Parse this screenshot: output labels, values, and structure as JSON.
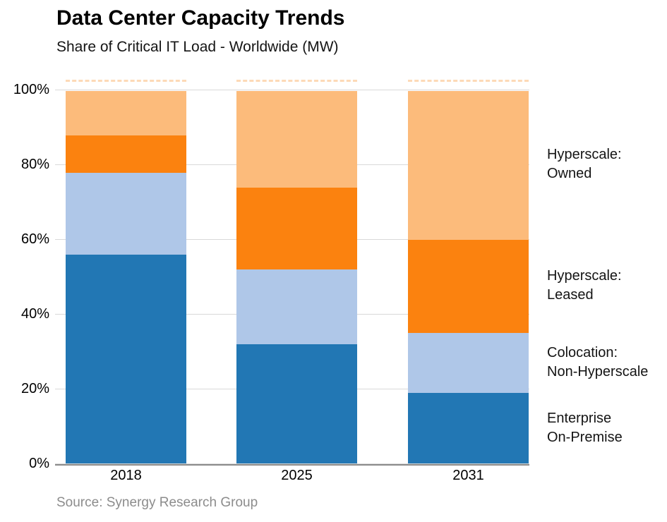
{
  "source": "Source: Synergy Research Group",
  "chart_data": {
    "type": "bar",
    "stacked": true,
    "percent": true,
    "title": "Data Center Capacity Trends",
    "subtitle": "Share of Critical IT Load - Worldwide (MW)",
    "categories": [
      "2018",
      "2025",
      "2031"
    ],
    "series": [
      {
        "name": "Enterprise On-Premise",
        "legend": [
          "Enterprise",
          "On-Premise"
        ],
        "color": "#2277B4",
        "values": [
          56,
          32,
          19
        ]
      },
      {
        "name": "Colocation: Non-Hyperscale",
        "legend": [
          "Colocation:",
          "Non-Hyperscale"
        ],
        "color": "#AFC7E8",
        "values": [
          22,
          20,
          16
        ]
      },
      {
        "name": "Hyperscale: Leased",
        "legend": [
          "Hyperscale:",
          "Leased"
        ],
        "color": "#FB820F",
        "values": [
          10,
          22,
          25
        ]
      },
      {
        "name": "Hyperscale: Owned",
        "legend": [
          "Hyperscale:",
          "Owned"
        ],
        "color": "#FCBB7B",
        "values": [
          12,
          26,
          40
        ]
      }
    ],
    "ylim": [
      0,
      100
    ],
    "y_ticks": [
      "0%",
      "20%",
      "40%",
      "60%",
      "80%",
      "100%"
    ],
    "grid": true,
    "legend_position": "right",
    "axis_color": "#8A8A8A",
    "gridline_color": "#D9D9D9"
  }
}
